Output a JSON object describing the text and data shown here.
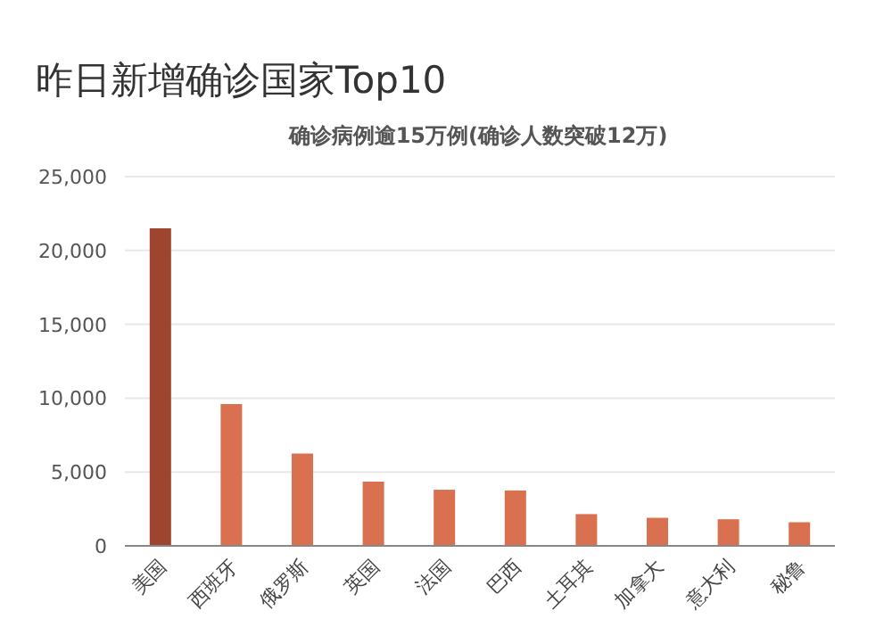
{
  "chart_data": {
    "type": "bar",
    "title": "昨日新增确诊国家Top10",
    "annotations": [
      "确诊病例逾15万例(确诊人数突破12万)"
    ],
    "categories": [
      "美国",
      "西班牙",
      "俄罗斯",
      "英国",
      "法国",
      "巴西",
      "土耳其",
      "加拿大",
      "意大利",
      "秘鲁"
    ],
    "values": [
      21500,
      9600,
      6250,
      4350,
      3800,
      3750,
      2150,
      1900,
      1800,
      1600
    ],
    "colors": [
      "#9e4530",
      "#d9704f",
      "#d9704f",
      "#d9704f",
      "#d9704f",
      "#d9704f",
      "#d9704f",
      "#d9704f",
      "#d9704f",
      "#d9704f"
    ],
    "ylim": [
      0,
      25000
    ],
    "yticks": [
      {
        "value": 0,
        "label": "0"
      },
      {
        "value": 5000,
        "label": "5,000"
      },
      {
        "value": 10000,
        "label": "10,000"
      },
      {
        "value": 15000,
        "label": "15,000"
      },
      {
        "value": 20000,
        "label": "20,000"
      },
      {
        "value": 25000,
        "label": "25,000"
      }
    ],
    "grid": "y"
  }
}
